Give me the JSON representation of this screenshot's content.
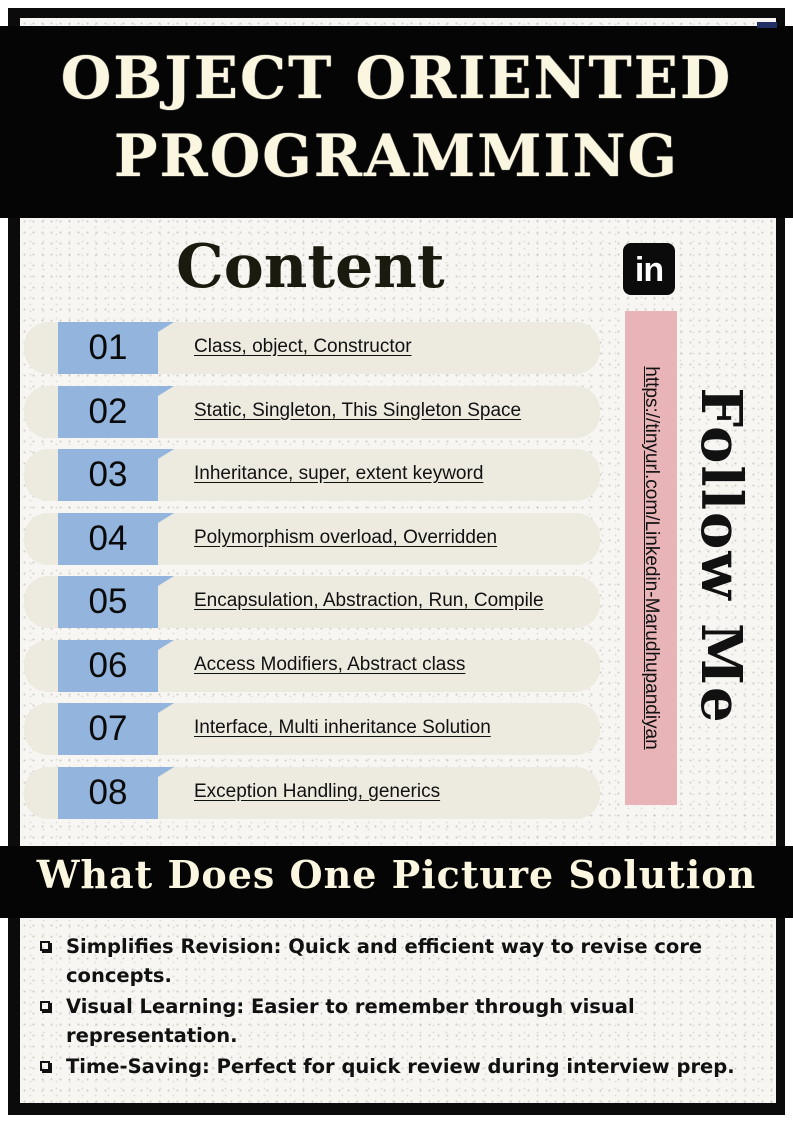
{
  "header": {
    "title_line1": "OBJECT ORIENTED",
    "title_line2": "PROGRAMMING"
  },
  "content": {
    "heading": "Content",
    "items": [
      {
        "num": "01",
        "label": "Class, object, Constructor"
      },
      {
        "num": "02",
        "label": "Static, Singleton, This Singleton Space"
      },
      {
        "num": "03",
        "label": "Inheritance, super, extent keyword"
      },
      {
        "num": "04",
        "label": "Polymorphism overload, Overridden"
      },
      {
        "num": "05",
        "label": "Encapsulation, Abstraction, Run, Compile"
      },
      {
        "num": "06",
        "label": "Access Modifiers, Abstract class"
      },
      {
        "num": "07",
        "label": "Interface, Multi inheritance Solution"
      },
      {
        "num": "08",
        "label": "Exception Handling, generics"
      }
    ]
  },
  "sidebar": {
    "icon": "linkedin-icon",
    "icon_text": "in",
    "url": "https://tinyurl.com/Linkedin-Marudhupandiyan",
    "follow": "Follow Me"
  },
  "solution": {
    "title": "What Does One Picture Solution",
    "bullets": [
      "Simplifies Revision: Quick and efficient way to revise core concepts.",
      "Visual Learning: Easier to remember through visual representation.",
      "Time-Saving: Perfect for quick review during interview prep."
    ]
  },
  "colors": {
    "band": "#050505",
    "number_tab": "#93b4dc",
    "row": "#edeae0",
    "url_box": "#e8b4b8",
    "title_text": "#fbf6e0"
  }
}
